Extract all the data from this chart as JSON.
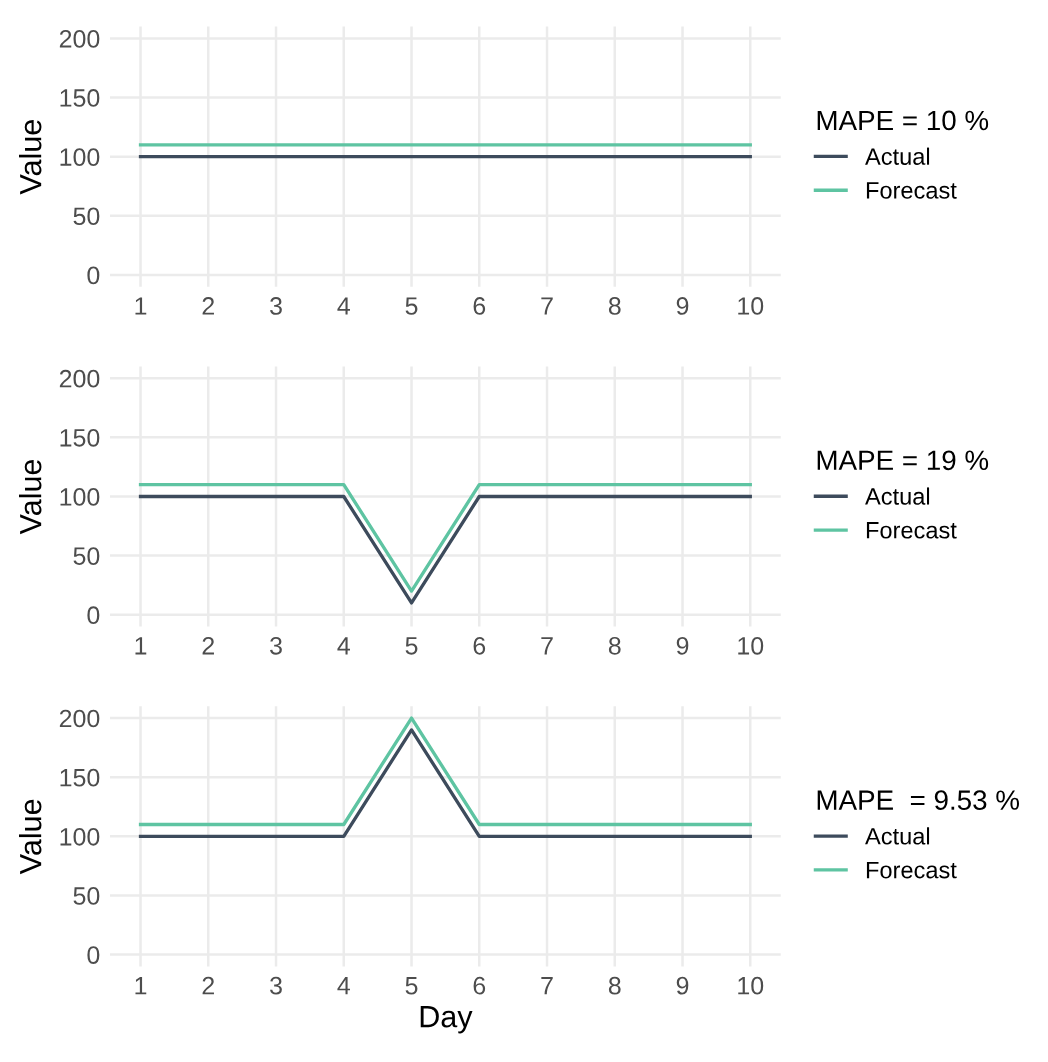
{
  "chart_data": [
    {
      "type": "line",
      "ylabel": "Value",
      "legend_title": "MAPE = 10 %",
      "x": [
        1,
        2,
        3,
        4,
        5,
        6,
        7,
        8,
        9,
        10
      ],
      "xlim": [
        0.55,
        10.45
      ],
      "xticks": [
        1,
        2,
        3,
        4,
        5,
        6,
        7,
        8,
        9,
        10
      ],
      "ylim": [
        -10,
        210
      ],
      "yticks": [
        0,
        50,
        100,
        150,
        200
      ],
      "grid": true,
      "legend": "right",
      "series": [
        {
          "name": "Actual",
          "color": "#3d4b5c",
          "values": [
            100,
            100,
            100,
            100,
            100,
            100,
            100,
            100,
            100,
            100
          ]
        },
        {
          "name": "Forecast",
          "color": "#5ec4a2",
          "values": [
            110,
            110,
            110,
            110,
            110,
            110,
            110,
            110,
            110,
            110
          ]
        }
      ]
    },
    {
      "type": "line",
      "ylabel": "Value",
      "legend_title": "MAPE = 19 %",
      "x": [
        1,
        2,
        3,
        4,
        5,
        6,
        7,
        8,
        9,
        10
      ],
      "xlim": [
        0.55,
        10.45
      ],
      "xticks": [
        1,
        2,
        3,
        4,
        5,
        6,
        7,
        8,
        9,
        10
      ],
      "ylim": [
        -10,
        210
      ],
      "yticks": [
        0,
        50,
        100,
        150,
        200
      ],
      "grid": true,
      "legend": "right",
      "series": [
        {
          "name": "Actual",
          "color": "#3d4b5c",
          "values": [
            100,
            100,
            100,
            100,
            10,
            100,
            100,
            100,
            100,
            100
          ]
        },
        {
          "name": "Forecast",
          "color": "#5ec4a2",
          "values": [
            110,
            110,
            110,
            110,
            20,
            110,
            110,
            110,
            110,
            110
          ]
        }
      ]
    },
    {
      "type": "line",
      "xlabel": "Day",
      "ylabel": "Value",
      "legend_title": "MAPE  = 9.53 %",
      "x": [
        1,
        2,
        3,
        4,
        5,
        6,
        7,
        8,
        9,
        10
      ],
      "xlim": [
        0.55,
        10.45
      ],
      "xticks": [
        1,
        2,
        3,
        4,
        5,
        6,
        7,
        8,
        9,
        10
      ],
      "ylim": [
        -10,
        210
      ],
      "yticks": [
        0,
        50,
        100,
        150,
        200
      ],
      "grid": true,
      "legend": "right",
      "series": [
        {
          "name": "Actual",
          "color": "#3d4b5c",
          "values": [
            100,
            100,
            100,
            100,
            190,
            100,
            100,
            100,
            100,
            100
          ]
        },
        {
          "name": "Forecast",
          "color": "#5ec4a2",
          "values": [
            110,
            110,
            110,
            110,
            200,
            110,
            110,
            110,
            110,
            110
          ]
        }
      ]
    }
  ]
}
